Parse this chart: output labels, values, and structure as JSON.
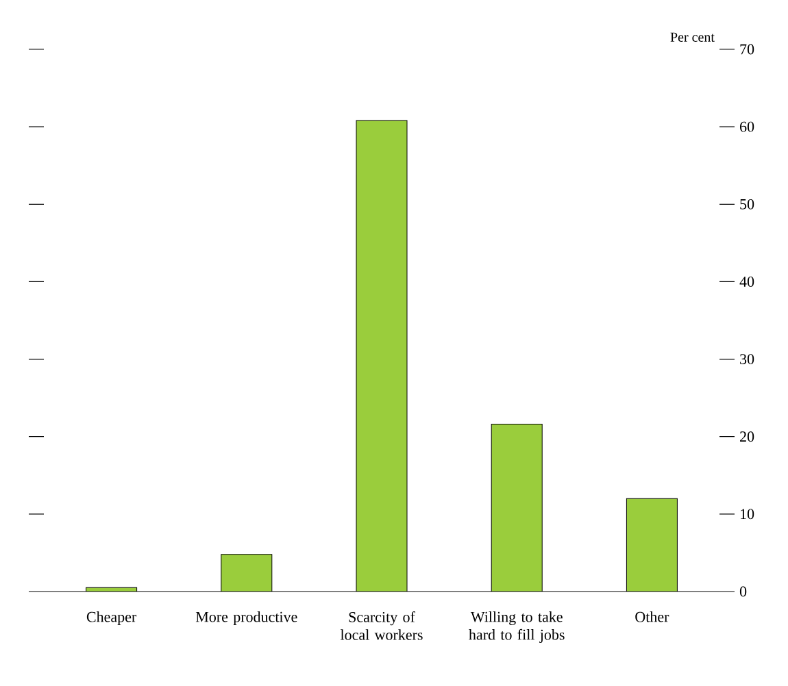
{
  "chart_data": {
    "type": "bar",
    "ylabel": "Per cent",
    "categories": [
      "Cheaper",
      "More productive",
      "Scarcity of local workers",
      "Willing to take hard to fill jobs",
      "Other"
    ],
    "values": [
      0.5,
      4.8,
      60.8,
      21.6,
      12.0
    ],
    "color": "#9acd3c",
    "ylim": [
      0,
      70
    ],
    "yticks": [
      0,
      10,
      20,
      30,
      40,
      50,
      60,
      70
    ],
    "grid": false
  }
}
